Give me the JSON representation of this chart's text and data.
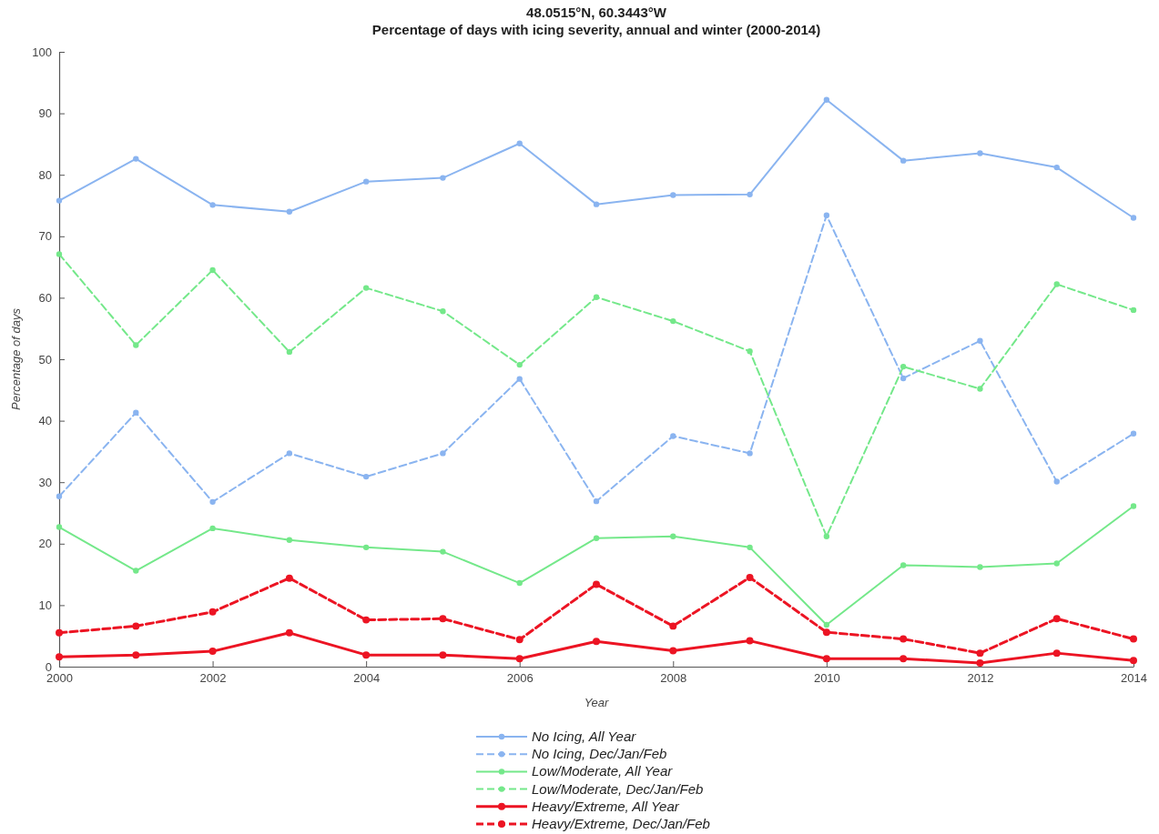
{
  "chart_data": {
    "type": "line",
    "title": "48.0515°N, 60.3443°W",
    "subtitle": "Percentage of days with icing severity, annual and winter (2000-2014)",
    "xlabel": "Year",
    "ylabel": "Percentage of days",
    "x": [
      2000,
      2001,
      2002,
      2003,
      2004,
      2005,
      2006,
      2007,
      2008,
      2009,
      2010,
      2011,
      2012,
      2013,
      2014
    ],
    "xlim": [
      2000,
      2014
    ],
    "xticks": [
      2000,
      2002,
      2004,
      2006,
      2008,
      2010,
      2012,
      2014
    ],
    "ylim": [
      0,
      100
    ],
    "yticks": [
      0,
      10,
      20,
      30,
      40,
      50,
      60,
      70,
      80,
      90,
      100
    ],
    "marker": "circle",
    "legend": "bottom",
    "series": [
      {
        "name": "No Icing, All Year",
        "color": "#8ab4f0",
        "line_style": "solid",
        "values": [
          75.8,
          82.6,
          75.1,
          74.0,
          78.9,
          79.5,
          85.1,
          75.2,
          76.7,
          76.8,
          92.2,
          82.3,
          83.5,
          81.2,
          73.0
        ]
      },
      {
        "name": "No Icing, Dec/Jan/Feb",
        "color": "#8ab4f0",
        "line_style": "dashed",
        "values": [
          27.7,
          41.3,
          26.8,
          34.7,
          30.9,
          34.7,
          46.8,
          26.9,
          37.5,
          34.7,
          73.4,
          46.9,
          53.0,
          30.1,
          37.9
        ]
      },
      {
        "name": "Low/Moderate, All Year",
        "color": "#74e88a",
        "line_style": "solid",
        "values": [
          22.7,
          15.6,
          22.5,
          20.6,
          19.4,
          18.7,
          13.6,
          20.9,
          21.2,
          19.4,
          6.8,
          16.5,
          16.2,
          16.8,
          26.1
        ]
      },
      {
        "name": "Low/Moderate, Dec/Jan/Feb",
        "color": "#74e88a",
        "line_style": "dashed",
        "values": [
          67.1,
          52.3,
          64.5,
          51.2,
          61.6,
          57.8,
          49.1,
          60.1,
          56.2,
          51.3,
          21.2,
          48.8,
          45.2,
          62.2,
          58.0
        ]
      },
      {
        "name": "Heavy/Extreme, All Year",
        "color": "#ec1423",
        "line_style": "solid",
        "values": [
          1.6,
          1.9,
          2.5,
          5.5,
          1.9,
          1.9,
          1.3,
          4.1,
          2.6,
          4.2,
          1.3,
          1.3,
          0.6,
          2.2,
          1.0
        ]
      },
      {
        "name": "Heavy/Extreme, Dec/Jan/Feb",
        "color": "#ec1423",
        "line_style": "dashed",
        "values": [
          5.5,
          6.6,
          8.9,
          14.4,
          7.6,
          7.8,
          4.4,
          13.4,
          6.6,
          14.5,
          5.6,
          4.5,
          2.2,
          7.8,
          4.5
        ]
      }
    ]
  }
}
